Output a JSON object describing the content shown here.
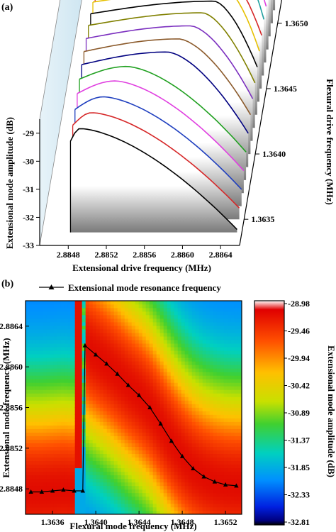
{
  "chart_data": [
    {
      "panel": "(a)",
      "type": "line",
      "xlabel": "Extensional drive frequency (MHz)",
      "ylabel": "Extensional mode amplitude (dB)",
      "zlabel": "Flexural drive frequency (MHz)",
      "xticks": [
        "2.8848",
        "2.8852",
        "2.8856",
        "2.8860",
        "2.8864"
      ],
      "yticks": [
        "-29",
        "-30",
        "-31",
        "-32",
        "-33"
      ],
      "zticks": [
        "1.3635",
        "1.3640",
        "1.3645",
        "1.3650"
      ],
      "xlim": [
        2.8845,
        2.8866
      ],
      "ylim": [
        -33,
        -28.5
      ],
      "zlim": [
        1.3633,
        1.3652
      ],
      "series": [
        {
          "flex": 1.3634,
          "color": "#000000",
          "peak_x": 2.8849,
          "peak_y": -29.3,
          "end_y": -32.9
        },
        {
          "flex": 1.3635,
          "color": "#d62728",
          "peak_x": 2.885,
          "peak_y": -29.2,
          "end_y": -32.6
        },
        {
          "flex": 1.3636,
          "color": "#1f3fbf",
          "peak_x": 2.8851,
          "peak_y": -29.1,
          "end_y": -32.4
        },
        {
          "flex": 1.3637,
          "color": "#e040e0",
          "peak_x": 2.8852,
          "peak_y": -29.0,
          "end_y": -32.2
        },
        {
          "flex": 1.3638,
          "color": "#20a020",
          "peak_x": 2.8853,
          "peak_y": -28.95,
          "end_y": -32.0
        },
        {
          "flex": 1.3639,
          "color": "#000080",
          "peak_x": 2.8857,
          "peak_y": -28.9,
          "end_y": -31.8
        },
        {
          "flex": 1.364,
          "color": "#8b5a2b",
          "peak_x": 2.8858,
          "peak_y": -28.9,
          "end_y": -31.6
        },
        {
          "flex": 1.3641,
          "color": "#7b2fbf",
          "peak_x": 2.8859,
          "peak_y": -28.9,
          "end_y": -31.5
        },
        {
          "flex": 1.3642,
          "color": "#808000",
          "peak_x": 2.886,
          "peak_y": -28.9,
          "end_y": -31.4
        },
        {
          "flex": 1.3643,
          "color": "#000000",
          "peak_x": 2.8861,
          "peak_y": -28.95,
          "end_y": -31.3
        },
        {
          "flex": 1.3644,
          "color": "#e6c000",
          "peak_x": 2.8862,
          "peak_y": -29.0,
          "end_y": -31.2
        },
        {
          "flex": 1.3645,
          "color": "#d62728",
          "peak_x": 2.8862,
          "peak_y": -29.05,
          "end_y": -31.1
        },
        {
          "flex": 1.3646,
          "color": "#20a0a0",
          "peak_x": 2.8863,
          "peak_y": -29.1,
          "end_y": -31.0
        },
        {
          "flex": 1.3647,
          "color": "#e040e0",
          "peak_x": 2.8863,
          "peak_y": -29.15,
          "end_y": -31.0
        },
        {
          "flex": 1.3648,
          "color": "#1f3fbf",
          "peak_x": 2.8864,
          "peak_y": -29.2,
          "end_y": -30.9
        },
        {
          "flex": 1.3649,
          "color": "#800000",
          "peak_x": 2.8864,
          "peak_y": -29.25,
          "end_y": -30.9
        },
        {
          "flex": 1.365,
          "color": "#20a020",
          "peak_x": 2.8864,
          "peak_y": -29.3,
          "end_y": -30.8
        },
        {
          "flex": 1.3651,
          "color": "#00a0e0",
          "peak_x": 2.8865,
          "peak_y": -29.35,
          "end_y": -30.8
        },
        {
          "flex": 1.3652,
          "color": "#8b5a2b",
          "peak_x": 2.8865,
          "peak_y": -29.4,
          "end_y": -30.7
        }
      ]
    },
    {
      "panel": "(b)",
      "type": "heatmap",
      "xlabel": "Flexural mode frequency (MHz)",
      "ylabel": "Extensional mode frequency (MHz)",
      "colorbar_label": "Extensional mode amplitude (dB)",
      "legend": "Extensional mode resonance frequency",
      "xticks": [
        "1.3636",
        "1.3640",
        "1.3644",
        "1.3648",
        "1.3652"
      ],
      "yticks": [
        "2.8864",
        "2.8860",
        "2.8856",
        "2.8852",
        "2.8848"
      ],
      "xlim": [
        1.36335,
        1.36535
      ],
      "ylim": [
        2.88455,
        2.88665
      ],
      "colorbar_ticks": [
        "-28.98",
        "-29.46",
        "-29.94",
        "-30.42",
        "-30.89",
        "-31.37",
        "-31.85",
        "-32.33",
        "-32.81"
      ],
      "clim": [
        -32.81,
        -28.98
      ],
      "resonance_x": [
        1.3634,
        1.3635,
        1.3636,
        1.3637,
        1.3638,
        1.36388,
        1.3639,
        1.364,
        1.3641,
        1.3642,
        1.3643,
        1.3644,
        1.3645,
        1.3646,
        1.3647,
        1.3648,
        1.3649,
        1.365,
        1.3651,
        1.3652,
        1.3653
      ],
      "resonance_y": [
        2.88477,
        2.88477,
        2.88478,
        2.88479,
        2.88478,
        2.88478,
        2.88621,
        2.88612,
        2.88603,
        2.88593,
        2.88582,
        2.88572,
        2.8856,
        2.88544,
        2.88527,
        2.88512,
        2.885,
        2.88492,
        2.88487,
        2.88484,
        2.88483
      ]
    }
  ]
}
